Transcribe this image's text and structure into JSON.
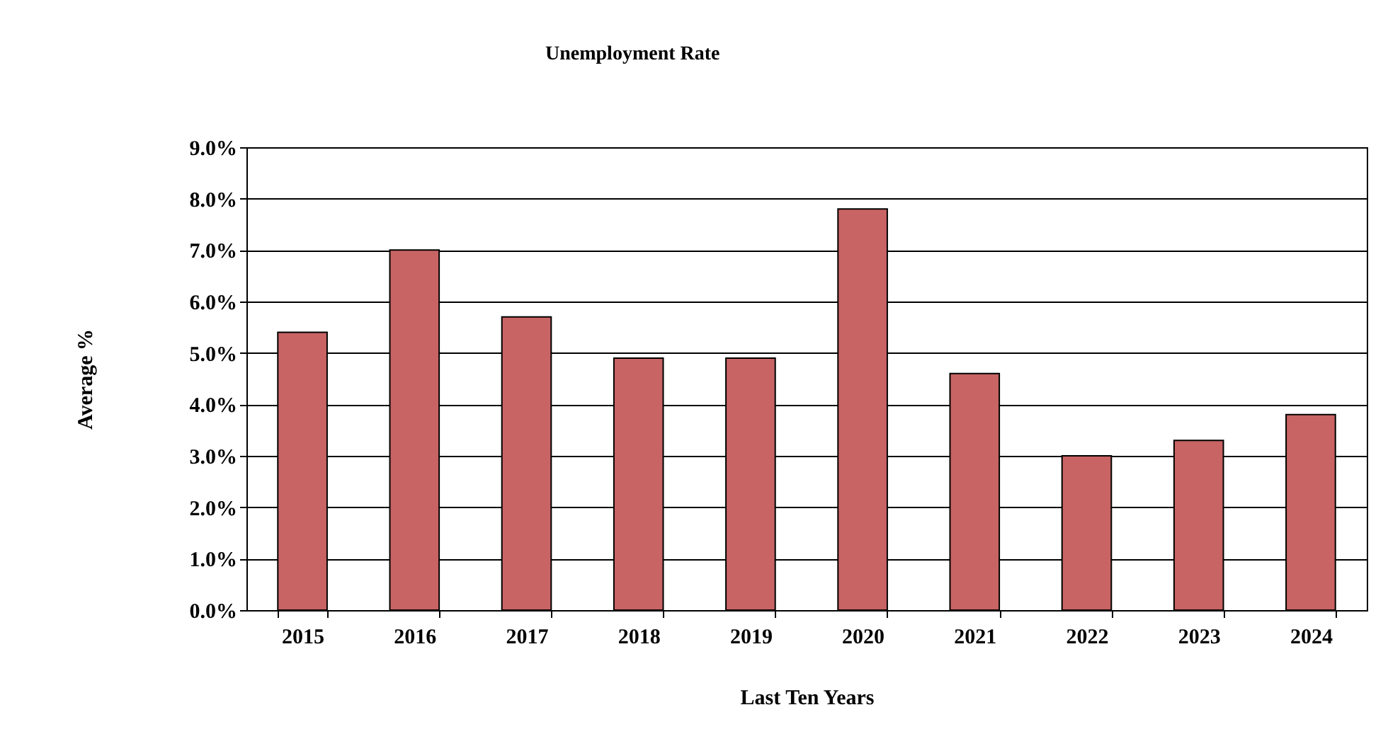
{
  "chart_data": {
    "type": "bar",
    "title": "Unemployment Rate",
    "xlabel": "Last Ten Years",
    "ylabel": "Average %",
    "categories": [
      "2015",
      "2016",
      "2017",
      "2018",
      "2019",
      "2020",
      "2021",
      "2022",
      "2023",
      "2024"
    ],
    "values": [
      5.4,
      7.0,
      5.7,
      4.9,
      4.9,
      7.8,
      4.6,
      3.0,
      3.3,
      3.8
    ],
    "color": "#c86464",
    "ylim": [
      0,
      9
    ],
    "yticks": [
      {
        "value": 0,
        "label": "0.0%"
      },
      {
        "value": 1,
        "label": "1.0%"
      },
      {
        "value": 2,
        "label": "2.0%"
      },
      {
        "value": 3,
        "label": "3.0%"
      },
      {
        "value": 4,
        "label": "4.0%"
      },
      {
        "value": 5,
        "label": "5.0%"
      },
      {
        "value": 6,
        "label": "6.0%"
      },
      {
        "value": 7,
        "label": "7.0%"
      },
      {
        "value": 8,
        "label": "8.0%"
      },
      {
        "value": 9,
        "label": "9.0%"
      }
    ],
    "grid": "y"
  }
}
